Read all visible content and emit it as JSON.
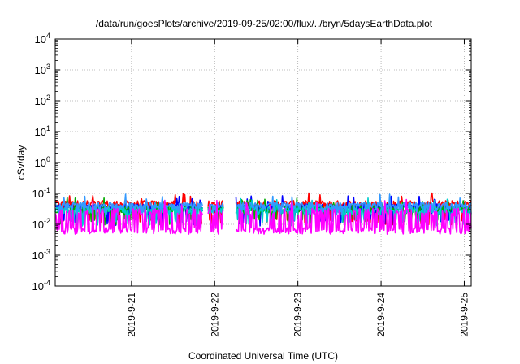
{
  "chart_data": {
    "type": "line",
    "title": "/data/run/goesPlots/archive/2019-09-25/02:00/flux/../bryn/5daysEarthData.plot",
    "xlabel": "Coordinated Universal Time (UTC)",
    "ylabel": "cSv/day",
    "yscale": "log",
    "ylim": [
      0.0001,
      10000
    ],
    "yticks": [
      {
        "value": 0.0001,
        "base": "10",
        "exp": "-4"
      },
      {
        "value": 0.001,
        "base": "10",
        "exp": "-3"
      },
      {
        "value": 0.01,
        "base": "10",
        "exp": "-2"
      },
      {
        "value": 0.1,
        "base": "10",
        "exp": "-1"
      },
      {
        "value": 1,
        "base": "10",
        "exp": "0"
      },
      {
        "value": 10,
        "base": "10",
        "exp": "1"
      },
      {
        "value": 100,
        "base": "10",
        "exp": "2"
      },
      {
        "value": 1000,
        "base": "10",
        "exp": "3"
      },
      {
        "value": 10000,
        "base": "10",
        "exp": "4"
      }
    ],
    "xlim": [
      "2019-09-20T02:00",
      "2019-09-25T02:00"
    ],
    "xticks": [
      {
        "value": "2019-09-21T00:00",
        "label": "2019-9-21"
      },
      {
        "value": "2019-09-22T00:00",
        "label": "2019-9-22"
      },
      {
        "value": "2019-09-23T00:00",
        "label": "2019-9-23"
      },
      {
        "value": "2019-09-24T00:00",
        "label": "2019-9-24"
      },
      {
        "value": "2019-09-25T00:00",
        "label": "2019-9-25"
      }
    ],
    "grid": true,
    "legend": "none",
    "gaps": [
      [
        "2019-09-21T20:30",
        "2019-09-21T22:00"
      ],
      [
        "2019-09-22T02:30",
        "2019-09-22T06:00"
      ]
    ],
    "series": [
      {
        "color": "#ff0000",
        "base": 0.045,
        "low": 0.012,
        "peak": 0.065,
        "dip_rate": 0.12
      },
      {
        "color": "#0000ff",
        "base": 0.035,
        "low": 0.011,
        "peak": 0.055,
        "dip_rate": 0.1
      },
      {
        "color": "#00aa00",
        "base": 0.03,
        "low": 0.012,
        "peak": 0.048,
        "dip_rate": 0.12
      },
      {
        "color": "#00cccc",
        "base": 0.028,
        "low": 0.011,
        "peak": 0.045,
        "dip_rate": 0.12
      },
      {
        "color": "#3399ff",
        "base": 0.04,
        "low": 0.02,
        "peak": 0.06,
        "dip_rate": 0.08
      },
      {
        "color": "#ff00ff",
        "base": 0.025,
        "low": 0.006,
        "peak": 0.04,
        "dip_rate": 0.55
      }
    ]
  }
}
